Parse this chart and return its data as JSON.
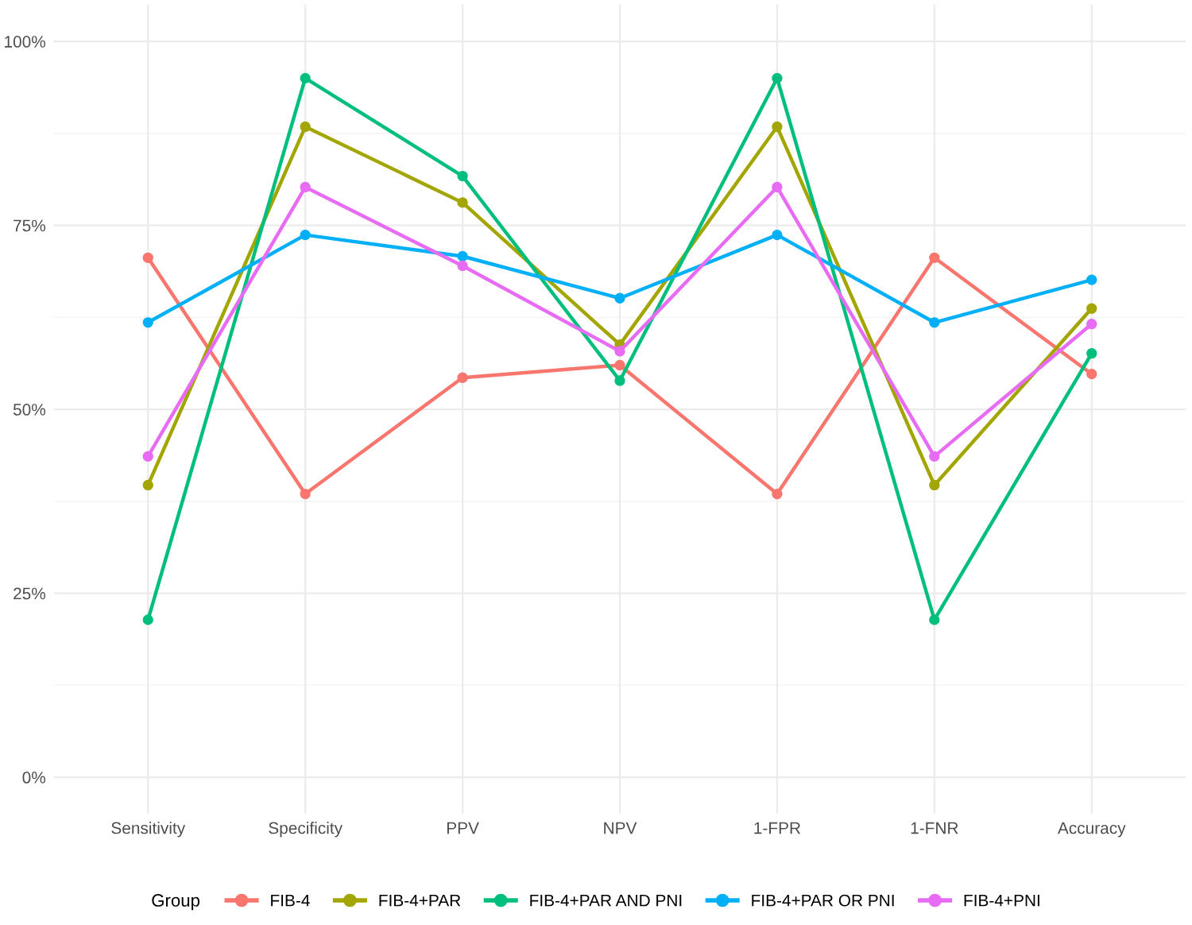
{
  "chart_data": {
    "type": "line",
    "categories": [
      "Sensitivity",
      "Specificity",
      "PPV",
      "NPV",
      "1-FPR",
      "1-FNR",
      "Accuracy"
    ],
    "series": [
      {
        "name": "FIB-4",
        "color": "#f8766d",
        "values": [
          70.6,
          38.5,
          54.3,
          56.0,
          38.5,
          70.6,
          54.8
        ]
      },
      {
        "name": "FIB-4+PAR",
        "color": "#a3a500",
        "values": [
          39.7,
          88.4,
          78.1,
          58.8,
          88.4,
          39.7,
          63.7
        ]
      },
      {
        "name": "FIB-4+PAR AND PNI",
        "color": "#00bf7d",
        "values": [
          21.4,
          95.0,
          81.7,
          53.9,
          95.0,
          21.4,
          57.6
        ]
      },
      {
        "name": "FIB-4+PAR OR PNI",
        "color": "#00b0f6",
        "values": [
          61.8,
          73.7,
          70.8,
          65.1,
          73.7,
          61.8,
          67.6
        ]
      },
      {
        "name": "FIB-4+PNI",
        "color": "#e76bf3",
        "values": [
          43.6,
          80.2,
          69.5,
          57.9,
          80.2,
          43.6,
          61.6
        ]
      }
    ],
    "legend_title": "Group",
    "ylim": [
      -5,
      105
    ],
    "yticks": [
      {
        "value": 0,
        "label": "0%"
      },
      {
        "value": 25,
        "label": "25%"
      },
      {
        "value": 50,
        "label": "50%"
      },
      {
        "value": 75,
        "label": "75%"
      },
      {
        "value": 100,
        "label": "100%"
      }
    ],
    "grid": true,
    "legend": "bottom",
    "marker": "circle",
    "line_style": "solid"
  }
}
